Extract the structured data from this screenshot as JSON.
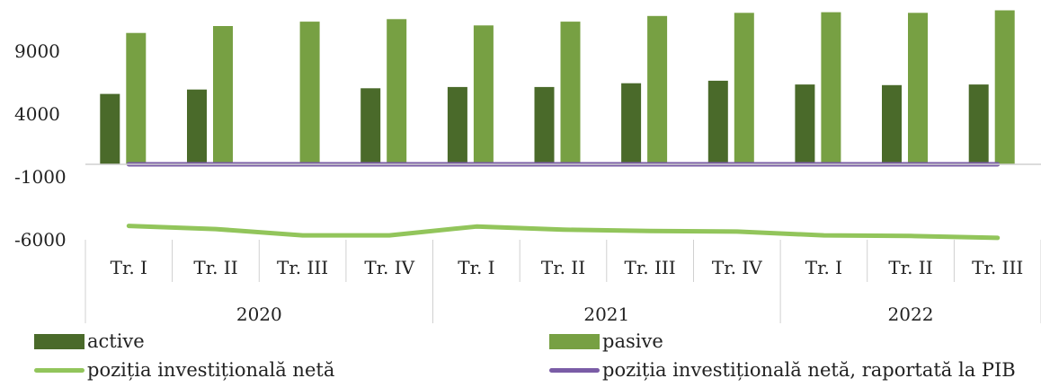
{
  "chart_data": {
    "type": "bar",
    "title": "",
    "xlabel": "",
    "ylabel": "",
    "ylim": [
      -6000,
      13000
    ],
    "yticks": [
      9000,
      4000,
      -1000,
      -6000
    ],
    "grid": false,
    "legend_position": "bottom",
    "categories": [
      "Tr. I",
      "Tr. II",
      "Tr. III",
      "Tr. IV",
      "Tr. I",
      "Tr. II",
      "Tr. III",
      "Tr. IV",
      "Tr. I",
      "Tr. II",
      "Tr. III"
    ],
    "groups": [
      {
        "label": "2020",
        "count": 4
      },
      {
        "label": "2021",
        "count": 4
      },
      {
        "label": "2022",
        "count": 3
      }
    ],
    "series": [
      {
        "name": "active",
        "kind": "bar",
        "color": "#4a6a2a",
        "values": [
          5600,
          5950,
          null,
          6050,
          6150,
          6150,
          6450,
          6650,
          6350,
          6300,
          6350
        ]
      },
      {
        "name": "pasive",
        "kind": "bar",
        "color": "#77a043",
        "values": [
          10450,
          11000,
          11350,
          11550,
          11050,
          11350,
          11800,
          12050,
          12100,
          12050,
          12250
        ]
      },
      {
        "name": "poziția investițională netă",
        "kind": "line",
        "color": "#92c55b",
        "values": [
          -4900,
          -5150,
          -5650,
          -5650,
          -4950,
          -5200,
          -5300,
          -5350,
          -5650,
          -5700,
          -5850
        ]
      },
      {
        "name": "poziția investițională netă, raportată la PIB",
        "kind": "line",
        "color": "#7a5ca6",
        "values": [
          0,
          0,
          0,
          0,
          0,
          0,
          0,
          0,
          0,
          0,
          0
        ]
      }
    ]
  }
}
